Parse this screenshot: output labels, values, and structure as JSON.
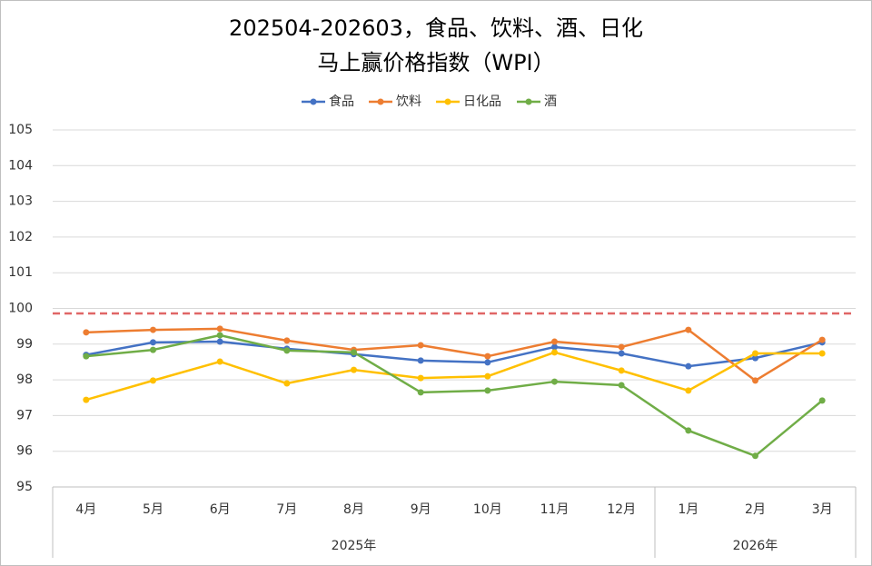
{
  "chart_data": {
    "type": "line",
    "title_lines": [
      "202504-202603，食品、饮料、酒、日化",
      "马上赢价格指数（WPI）"
    ],
    "categories": [
      "4月",
      "5月",
      "6月",
      "7月",
      "8月",
      "9月",
      "10月",
      "11月",
      "12月",
      "1月",
      "2月",
      "3月"
    ],
    "category_groups": [
      {
        "label": "2025年",
        "count": 9
      },
      {
        "label": "2026年",
        "count": 3
      }
    ],
    "series": [
      {
        "name": "食品",
        "color": "#4472c4",
        "values": [
          98.7,
          99.05,
          99.07,
          98.87,
          98.72,
          98.54,
          98.49,
          98.92,
          98.74,
          98.38,
          98.61,
          99.05
        ]
      },
      {
        "name": "饮料",
        "color": "#ed7d31",
        "values": [
          99.33,
          99.4,
          99.43,
          99.1,
          98.84,
          98.97,
          98.66,
          99.07,
          98.92,
          99.4,
          97.98,
          99.12
        ]
      },
      {
        "name": "日化品",
        "color": "#ffc000",
        "values": [
          97.44,
          97.98,
          98.51,
          97.9,
          98.28,
          98.05,
          98.1,
          98.77,
          98.26,
          97.7,
          98.74,
          98.74
        ]
      },
      {
        "name": "酒",
        "color": "#70ad47",
        "values": [
          98.66,
          98.84,
          99.25,
          98.82,
          98.77,
          97.65,
          97.7,
          97.95,
          97.85,
          96.58,
          95.87,
          97.42
        ]
      }
    ],
    "reference_line": {
      "value": 99.86,
      "color": "#e06666"
    },
    "ylim": [
      95,
      105
    ],
    "yticks": [
      95,
      96,
      97,
      98,
      99,
      100,
      101,
      102,
      103,
      104,
      105
    ],
    "grid": true,
    "legend": "top"
  }
}
